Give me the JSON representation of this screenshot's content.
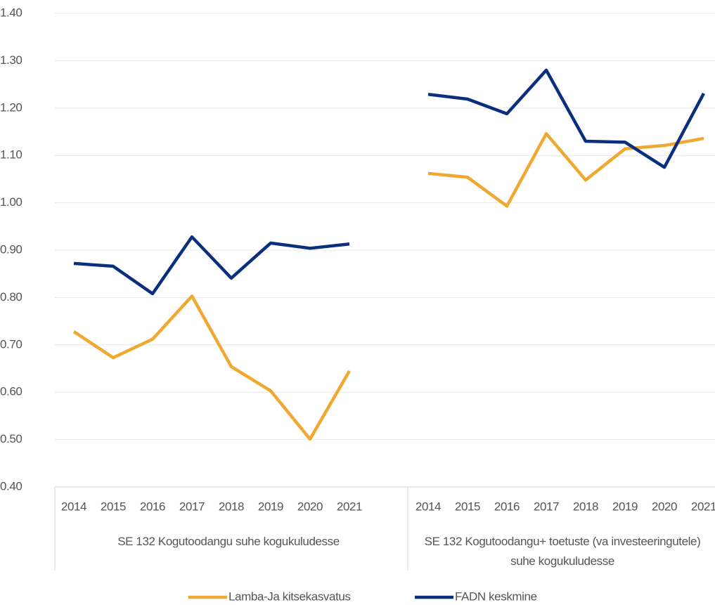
{
  "chart_data": {
    "type": "line",
    "ylim": [
      0.4,
      1.4
    ],
    "yticks": [
      {
        "value": 0.4,
        "label": "0.40"
      },
      {
        "value": 0.5,
        "label": "0.50"
      },
      {
        "value": 0.6,
        "label": "0.60"
      },
      {
        "value": 0.7,
        "label": "0.70"
      },
      {
        "value": 0.8,
        "label": "0.80"
      },
      {
        "value": 0.9,
        "label": "0.90"
      },
      {
        "value": 1.0,
        "label": "1.00"
      },
      {
        "value": 1.1,
        "label": "1.10"
      },
      {
        "value": 1.2,
        "label": "1.20"
      },
      {
        "value": 1.3,
        "label": "1.30"
      },
      {
        "value": 1.4,
        "label": "1.40"
      }
    ],
    "grid": true,
    "groups": [
      {
        "label": "SE 132 Kogutoodangu suhe kogukuludesse",
        "categories": [
          "2014",
          "2015",
          "2016",
          "2017",
          "2018",
          "2019",
          "2020",
          "2021"
        ]
      },
      {
        "label": "SE 132 Kogutoodangu+ toetuste (va investeeringutele) suhe kogukuludesse",
        "categories": [
          "2014",
          "2015",
          "2016",
          "2017",
          "2018",
          "2019",
          "2020",
          "2021"
        ]
      }
    ],
    "series": [
      {
        "name": "Lamba-Ja kitsekasvatus",
        "color": "#f0a830",
        "values": [
          [
            0.728,
            0.673,
            0.712,
            0.803,
            0.654,
            0.603,
            0.501,
            0.645
          ],
          [
            1.062,
            1.054,
            0.993,
            1.146,
            1.048,
            1.114,
            1.121,
            1.136
          ]
        ]
      },
      {
        "name": "FADN keskmine",
        "color": "#0b2f7f",
        "values": [
          [
            0.872,
            0.866,
            0.808,
            0.928,
            0.841,
            0.915,
            0.904,
            0.913
          ],
          [
            1.229,
            1.219,
            1.188,
            1.28,
            1.13,
            1.128,
            1.075,
            1.231
          ]
        ]
      }
    ],
    "legend": "bottom"
  }
}
